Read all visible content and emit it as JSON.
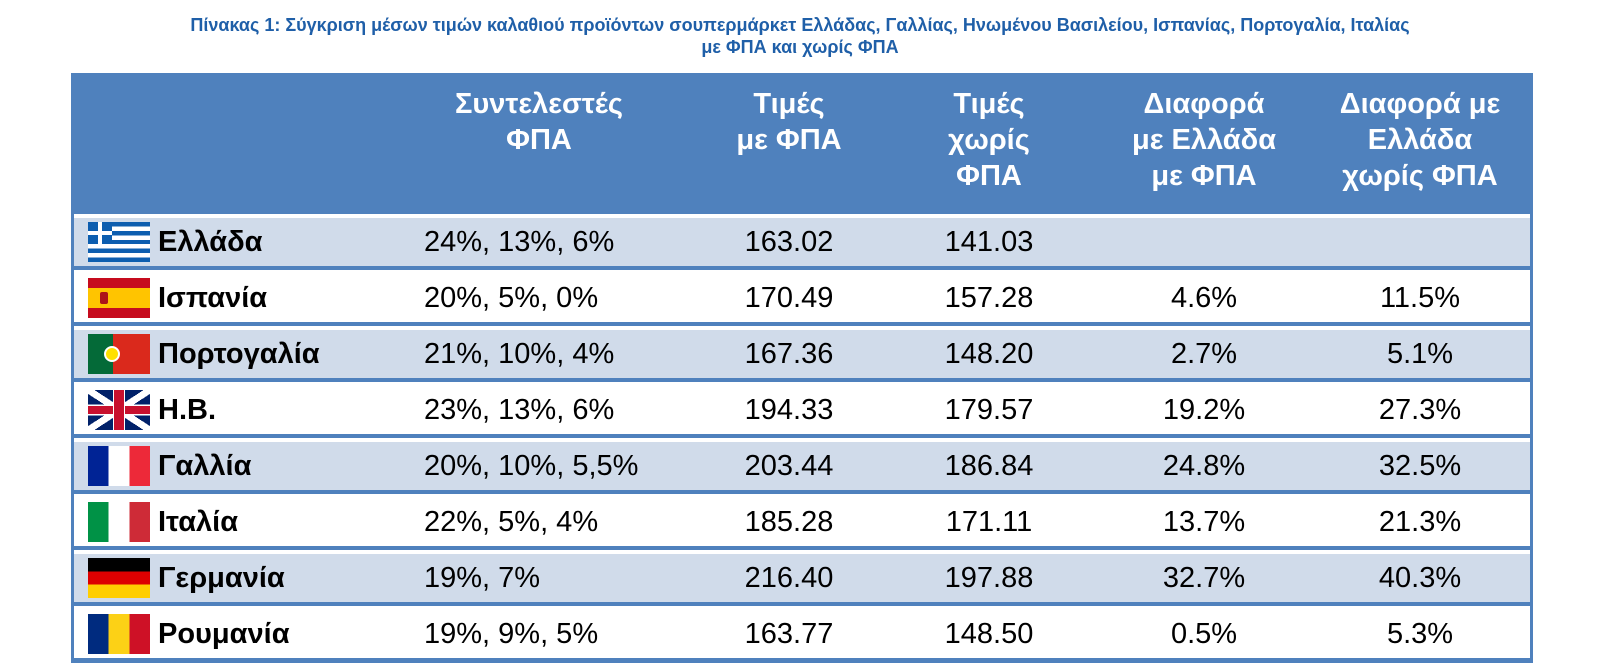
{
  "caption": {
    "line1": "Πίνακας 1: Σύγκριση μέσων τιμών καλαθιού προϊόντων σουπερμάρκετ Ελλάδας, Γαλλίας, Ηνωμένου Βασιλείου, Ισπανίας, Πορτογαλία, Ιταλίας",
    "line2": "με ΦΠΑ και χωρίς ΦΠΑ"
  },
  "colors": {
    "header_bg": "#4f81bd",
    "alt_row_bg": "#d0dbea",
    "caption_text": "#1f5fa8"
  },
  "header": {
    "vat_rates": [
      "Συντελεστές",
      "ΦΠΑ"
    ],
    "prices_with_vat": [
      "Τιμές",
      "με ΦΠΑ"
    ],
    "prices_without_vat": [
      "Τιμές",
      "χωρίς",
      "ΦΠΑ"
    ],
    "diff_with_vat": [
      "Διαφορά",
      "με Ελλάδα",
      "με ΦΠΑ"
    ],
    "diff_without_vat": [
      "Διαφορά με",
      "Ελλάδα",
      "χωρίς ΦΠΑ"
    ]
  },
  "rows": [
    {
      "flag": "flag-greece-icon",
      "country": "Ελλάδα",
      "vat": "24%, 13%, 6%",
      "with_vat": "163.02",
      "without_vat": "141.03",
      "diff_with": "",
      "diff_without": ""
    },
    {
      "flag": "flag-spain-icon",
      "country": "Ισπανία",
      "vat": "20%, 5%, 0%",
      "with_vat": "170.49",
      "without_vat": "157.28",
      "diff_with": "4.6%",
      "diff_without": "11.5%"
    },
    {
      "flag": "flag-portugal-icon",
      "country": "Πορτογαλία",
      "vat": "21%, 10%, 4%",
      "with_vat": "167.36",
      "without_vat": "148.20",
      "diff_with": "2.7%",
      "diff_without": "5.1%"
    },
    {
      "flag": "flag-uk-icon",
      "country": "Η.Β.",
      "vat": "23%, 13%, 6%",
      "with_vat": "194.33",
      "without_vat": "179.57",
      "diff_with": "19.2%",
      "diff_without": "27.3%"
    },
    {
      "flag": "flag-france-icon",
      "country": "Γαλλία",
      "vat": "20%, 10%, 5,5%",
      "with_vat": "203.44",
      "without_vat": "186.84",
      "diff_with": "24.8%",
      "diff_without": "32.5%"
    },
    {
      "flag": "flag-italy-icon",
      "country": "Ιταλία",
      "vat": "22%, 5%, 4%",
      "with_vat": "185.28",
      "without_vat": "171.11",
      "diff_with": "13.7%",
      "diff_without": "21.3%"
    },
    {
      "flag": "flag-germany-icon",
      "country": "Γερμανία",
      "vat": "19%, 7%",
      "with_vat": "216.40",
      "without_vat": "197.88",
      "diff_with": "32.7%",
      "diff_without": "40.3%"
    },
    {
      "flag": "flag-romania-icon",
      "country": "Ρουμανία",
      "vat": "19%, 9%, 5%",
      "with_vat": "163.77",
      "without_vat": "148.50",
      "diff_with": "0.5%",
      "diff_without": "5.3%"
    }
  ]
}
